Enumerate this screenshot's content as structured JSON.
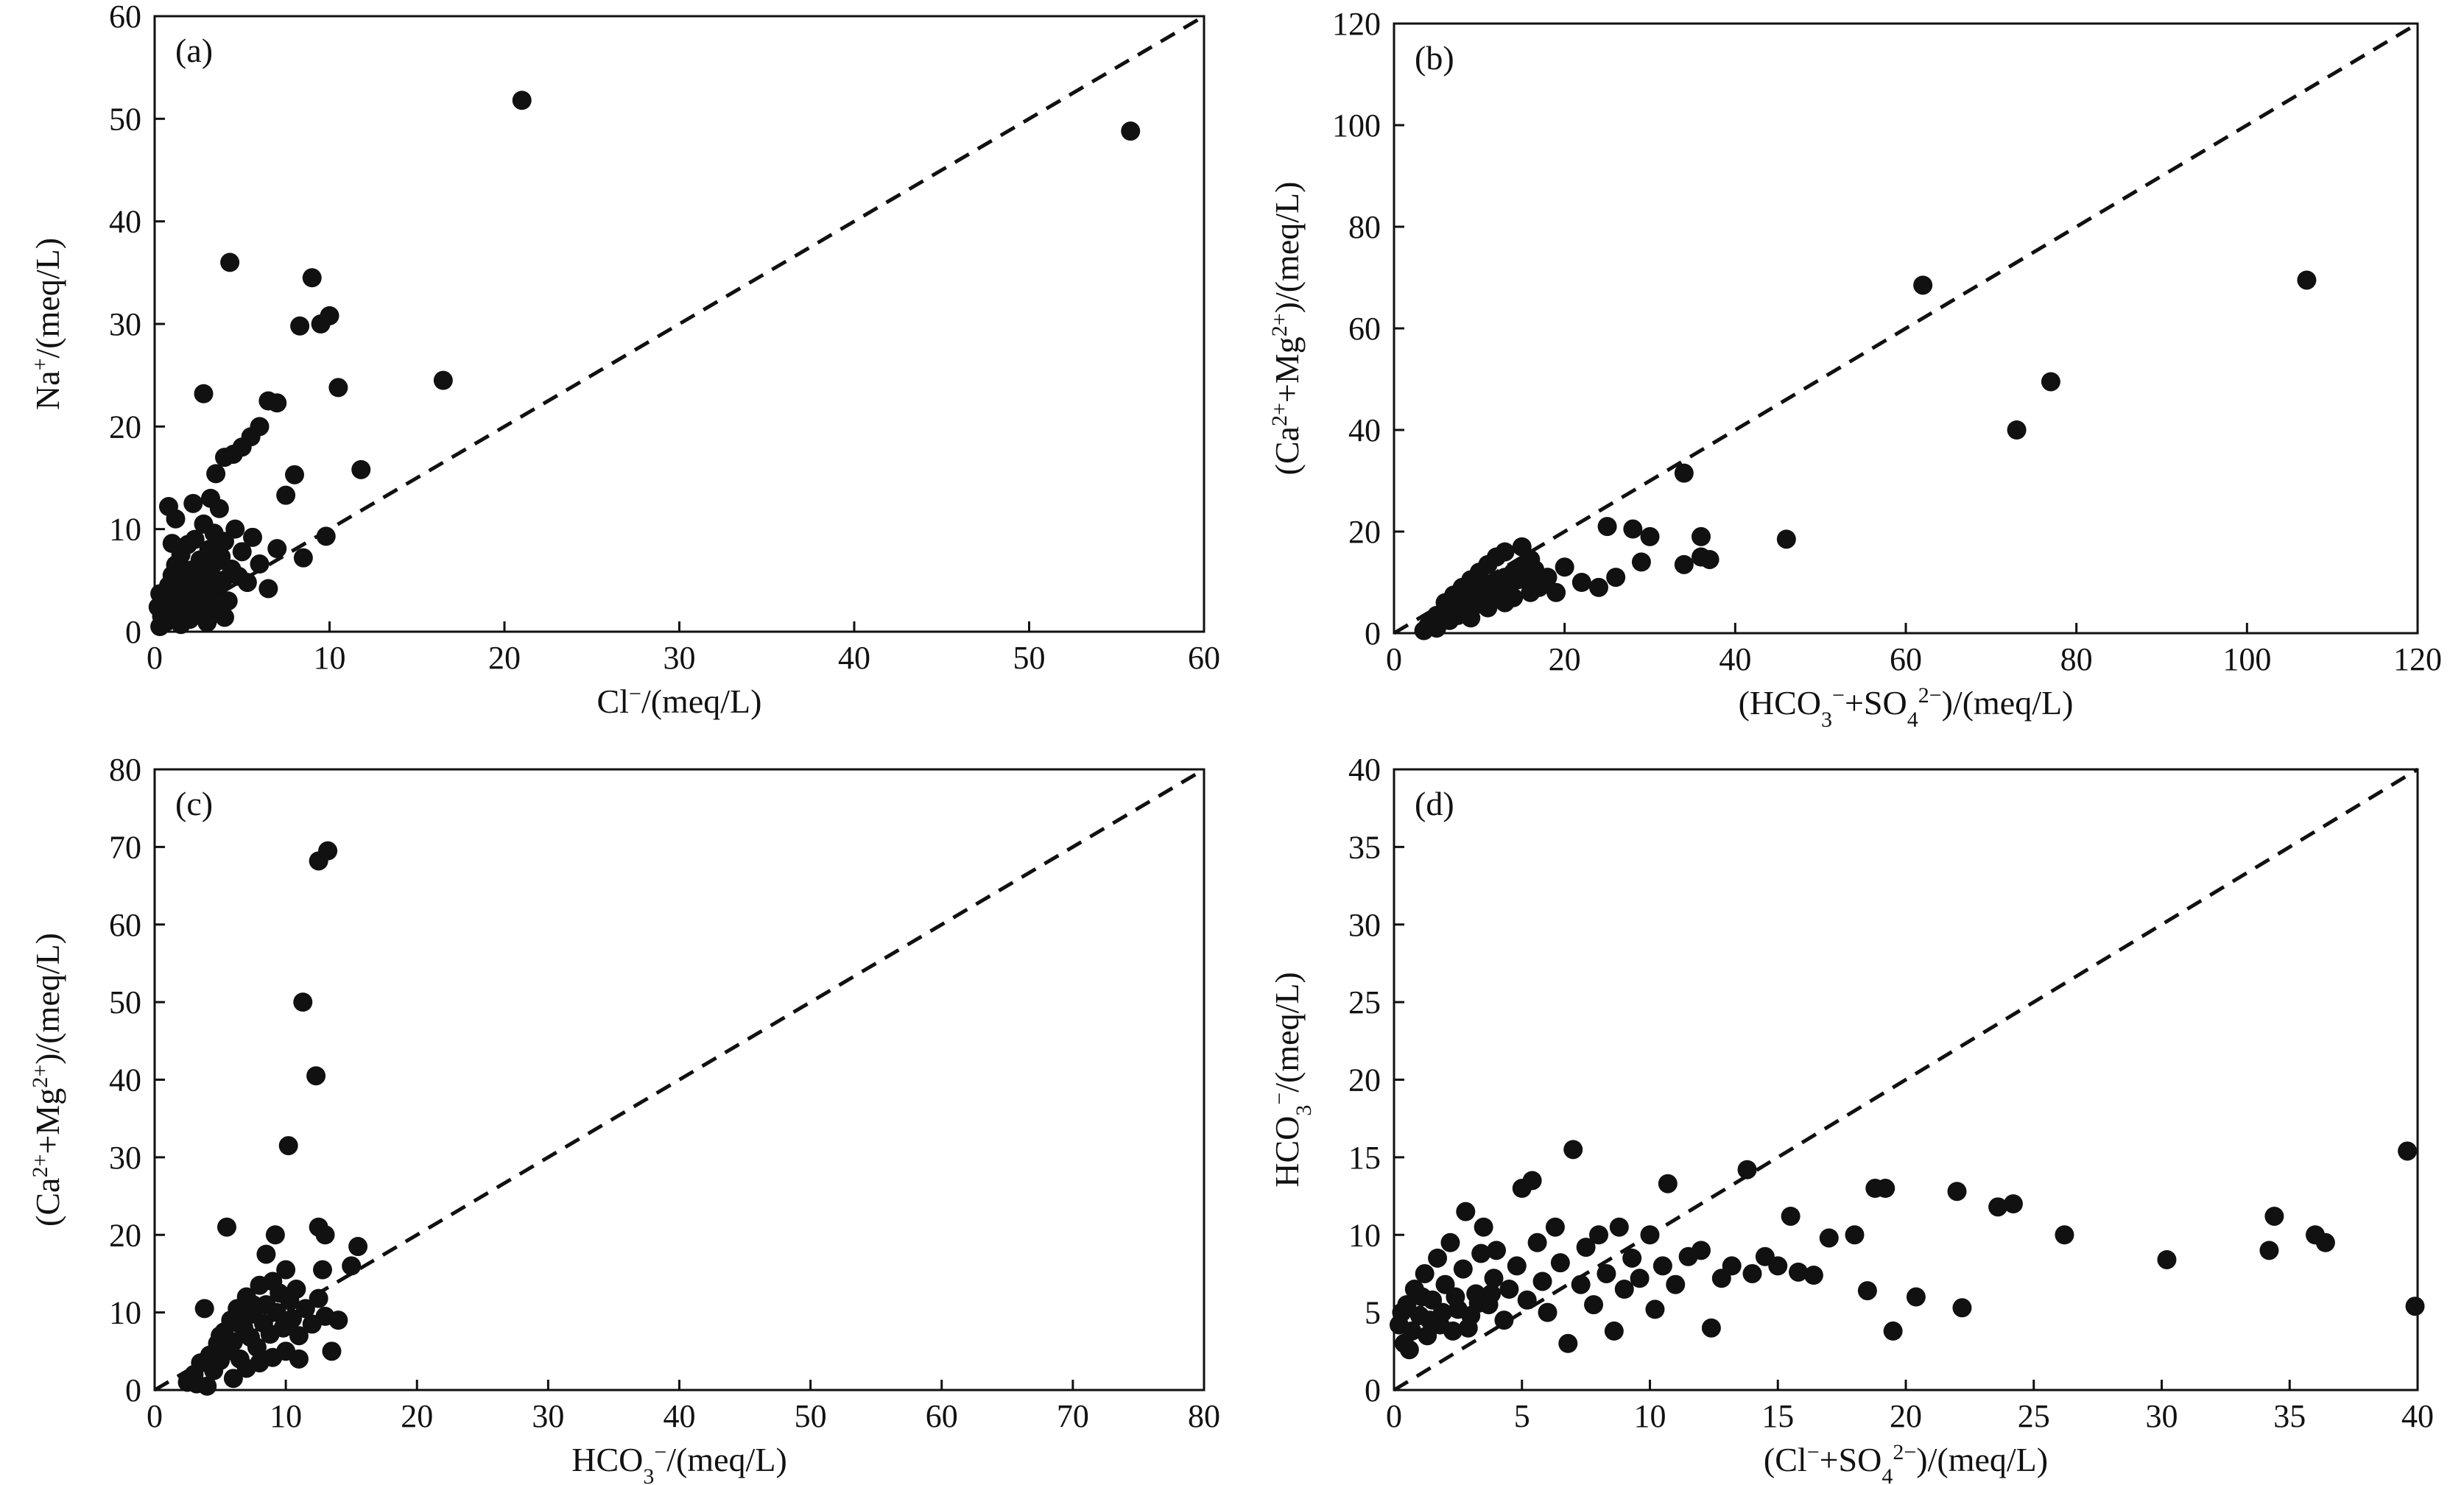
{
  "chart_data": [
    {
      "type": "scatter",
      "panel_label": "(a)",
      "xlabel": "Cl⁻/(meq/L)",
      "ylabel": "Na⁺/(meq/L)",
      "xlim": [
        0,
        60
      ],
      "ylim": [
        0,
        60
      ],
      "xticks": [
        0,
        10,
        20,
        30,
        40,
        50,
        60
      ],
      "yticks": [
        0,
        10,
        20,
        30,
        40,
        50,
        60
      ],
      "reference_line": "1:1 dashed",
      "points": [
        [
          0.3,
          0.5
        ],
        [
          0.4,
          1.5
        ],
        [
          0.5,
          2.8
        ],
        [
          0.6,
          3.5
        ],
        [
          0.7,
          1.0
        ],
        [
          0.8,
          4.5
        ],
        [
          0.9,
          2.2
        ],
        [
          1.0,
          5.5
        ],
        [
          1.1,
          3.0
        ],
        [
          1.2,
          6.5
        ],
        [
          1.3,
          1.8
        ],
        [
          1.4,
          4.0
        ],
        [
          1.5,
          7.5
        ],
        [
          1.6,
          2.5
        ],
        [
          1.7,
          5.0
        ],
        [
          1.8,
          3.5
        ],
        [
          1.9,
          8.5
        ],
        [
          2.0,
          4.2
        ],
        [
          2.1,
          6.0
        ],
        [
          2.2,
          2.0
        ],
        [
          2.3,
          9.0
        ],
        [
          2.4,
          5.2
        ],
        [
          2.5,
          3.2
        ],
        [
          2.6,
          7.0
        ],
        [
          2.7,
          4.6
        ],
        [
          2.8,
          10.5
        ],
        [
          2.9,
          6.3
        ],
        [
          3.0,
          2.8
        ],
        [
          3.1,
          8.0
        ],
        [
          3.2,
          5.7
        ],
        [
          3.3,
          3.9
        ],
        [
          3.4,
          9.6
        ],
        [
          3.5,
          6.8
        ],
        [
          3.6,
          4.4
        ],
        [
          3.7,
          12.0
        ],
        [
          3.8,
          7.3
        ],
        [
          3.9,
          5.0
        ],
        [
          4.0,
          8.8
        ],
        [
          4.2,
          3.0
        ],
        [
          4.4,
          6.1
        ],
        [
          4.6,
          10.0
        ],
        [
          4.8,
          5.4
        ],
        [
          5.0,
          7.8
        ],
        [
          5.3,
          4.8
        ],
        [
          5.6,
          9.2
        ],
        [
          6.0,
          6.6
        ],
        [
          6.5,
          4.2
        ],
        [
          7.0,
          8.1
        ],
        [
          0.8,
          12.2
        ],
        [
          2.8,
          23.2
        ],
        [
          4.3,
          36.0
        ],
        [
          3.5,
          15.4
        ],
        [
          4.0,
          17.0
        ],
        [
          4.5,
          17.3
        ],
        [
          5.0,
          18.0
        ],
        [
          5.5,
          19.0
        ],
        [
          6.0,
          20.0
        ],
        [
          6.5,
          22.5
        ],
        [
          7.0,
          22.3
        ],
        [
          7.5,
          13.3
        ],
        [
          8.0,
          15.3
        ],
        [
          8.3,
          29.8
        ],
        [
          9.0,
          34.5
        ],
        [
          9.5,
          30.0
        ],
        [
          10.0,
          30.8
        ],
        [
          10.5,
          23.8
        ],
        [
          11.8,
          15.8
        ],
        [
          16.5,
          24.5
        ],
        [
          21.0,
          51.8
        ],
        [
          55.8,
          48.8
        ],
        [
          8.5,
          7.2
        ],
        [
          9.8,
          9.3
        ],
        [
          1.5,
          0.7
        ],
        [
          2.0,
          1.2
        ],
        [
          2.5,
          1.9
        ],
        [
          3.0,
          0.9
        ],
        [
          3.5,
          2.3
        ],
        [
          4.0,
          1.4
        ],
        [
          1.0,
          8.6
        ],
        [
          1.2,
          11.0
        ],
        [
          2.2,
          12.5
        ],
        [
          3.2,
          13.0
        ],
        [
          0.2,
          2.4
        ],
        [
          0.3,
          3.7
        ]
      ]
    },
    {
      "type": "scatter",
      "panel_label": "(b)",
      "xlabel": "(HCO₃⁻+SO₄²⁻)/(meq/L)",
      "ylabel": "(Ca²⁺+Mg²⁺)/(meq/L)",
      "xlim": [
        0,
        120
      ],
      "ylim": [
        0,
        120
      ],
      "xticks": [
        0,
        20,
        40,
        60,
        80,
        100,
        120
      ],
      "yticks": [
        0,
        20,
        40,
        60,
        80,
        100,
        120
      ],
      "reference_line": "1:1 dashed",
      "points": [
        [
          3.5,
          0.5
        ],
        [
          4.0,
          1.5
        ],
        [
          4.5,
          2.0
        ],
        [
          5.0,
          1.0
        ],
        [
          5.5,
          3.0
        ],
        [
          6.0,
          4.0
        ],
        [
          6.5,
          2.5
        ],
        [
          7.0,
          5.0
        ],
        [
          7.5,
          3.5
        ],
        [
          8.0,
          6.5
        ],
        [
          8.5,
          4.5
        ],
        [
          9.0,
          7.0
        ],
        [
          9.5,
          5.5
        ],
        [
          10.0,
          8.0
        ],
        [
          10.5,
          6.0
        ],
        [
          11.0,
          9.0
        ],
        [
          11.5,
          7.5
        ],
        [
          12.0,
          10.0
        ],
        [
          12.5,
          8.5
        ],
        [
          13.0,
          11.0
        ],
        [
          13.5,
          9.5
        ],
        [
          14.0,
          12.0
        ],
        [
          14.5,
          10.5
        ],
        [
          15.0,
          13.0
        ],
        [
          15.5,
          11.5
        ],
        [
          16.0,
          14.5
        ],
        [
          16.5,
          12.5
        ],
        [
          17.0,
          9.0
        ],
        [
          18.0,
          11.0
        ],
        [
          19.0,
          8.0
        ],
        [
          20.0,
          13.0
        ],
        [
          22.0,
          10.0
        ],
        [
          24.0,
          9.0
        ],
        [
          25.0,
          21.0
        ],
        [
          26.0,
          11.0
        ],
        [
          28.0,
          20.5
        ],
        [
          29.0,
          14.0
        ],
        [
          30.0,
          19.0
        ],
        [
          34.0,
          31.5
        ],
        [
          34.0,
          13.5
        ],
        [
          36.0,
          19.0
        ],
        [
          36.0,
          15.0
        ],
        [
          37.0,
          14.5
        ],
        [
          46.0,
          18.5
        ],
        [
          62.0,
          68.5
        ],
        [
          73.0,
          40.0
        ],
        [
          77.0,
          49.5
        ],
        [
          107.0,
          69.5
        ],
        [
          6.0,
          6.0
        ],
        [
          7.0,
          7.5
        ],
        [
          8.0,
          9.0
        ],
        [
          9.0,
          10.5
        ],
        [
          10.0,
          12.0
        ],
        [
          11.0,
          13.5
        ],
        [
          12.0,
          15.0
        ],
        [
          13.0,
          16.0
        ],
        [
          15.0,
          17.0
        ],
        [
          5.0,
          3.5
        ],
        [
          9.0,
          3.0
        ],
        [
          11.0,
          5.0
        ],
        [
          13.0,
          6.0
        ],
        [
          14.0,
          7.0
        ],
        [
          16.0,
          8.0
        ]
      ]
    },
    {
      "type": "scatter",
      "panel_label": "(c)",
      "xlabel": "HCO₃⁻/(meq/L)",
      "ylabel": "(Ca²⁺+Mg²⁺)/(meq/L)",
      "xlim": [
        0,
        80
      ],
      "ylim": [
        0,
        80
      ],
      "xticks": [
        0,
        10,
        20,
        30,
        40,
        50,
        60,
        70,
        80
      ],
      "yticks": [
        0,
        10,
        20,
        30,
        40,
        50,
        60,
        70,
        80
      ],
      "reference_line": "1:1 dashed",
      "points": [
        [
          2.5,
          1.0
        ],
        [
          3.0,
          2.0
        ],
        [
          3.5,
          3.5
        ],
        [
          4.0,
          0.5
        ],
        [
          4.2,
          4.5
        ],
        [
          4.5,
          2.5
        ],
        [
          4.8,
          6.0
        ],
        [
          5.0,
          3.8
        ],
        [
          5.3,
          7.5
        ],
        [
          5.5,
          5.0
        ],
        [
          5.8,
          9.0
        ],
        [
          6.0,
          6.2
        ],
        [
          6.3,
          10.5
        ],
        [
          6.5,
          4.0
        ],
        [
          6.8,
          8.0
        ],
        [
          7.0,
          12.0
        ],
        [
          7.3,
          6.8
        ],
        [
          7.5,
          9.8
        ],
        [
          7.8,
          5.5
        ],
        [
          8.0,
          13.5
        ],
        [
          8.3,
          8.6
        ],
        [
          8.5,
          11.0
        ],
        [
          8.8,
          7.2
        ],
        [
          9.0,
          14.0
        ],
        [
          9.3,
          10.0
        ],
        [
          9.5,
          12.5
        ],
        [
          9.8,
          8.0
        ],
        [
          10.0,
          15.5
        ],
        [
          10.3,
          11.5
        ],
        [
          10.5,
          9.2
        ],
        [
          10.8,
          13.0
        ],
        [
          11.0,
          7.0
        ],
        [
          11.5,
          10.5
        ],
        [
          12.0,
          8.5
        ],
        [
          12.5,
          11.8
        ],
        [
          13.0,
          9.5
        ],
        [
          13.5,
          5.0
        ],
        [
          14.0,
          9.0
        ],
        [
          15.0,
          16.0
        ],
        [
          15.5,
          18.5
        ],
        [
          12.8,
          15.5
        ],
        [
          5.5,
          21.0
        ],
        [
          3.8,
          10.5
        ],
        [
          8.5,
          17.5
        ],
        [
          9.2,
          20.0
        ],
        [
          10.2,
          31.5
        ],
        [
          11.3,
          50.0
        ],
        [
          12.3,
          40.5
        ],
        [
          12.5,
          68.2
        ],
        [
          13.2,
          69.5
        ],
        [
          12.5,
          21.0
        ],
        [
          13.0,
          20.0
        ],
        [
          6.0,
          1.5
        ],
        [
          7.0,
          2.8
        ],
        [
          8.0,
          3.5
        ],
        [
          9.0,
          4.2
        ],
        [
          10.0,
          5.0
        ],
        [
          11.0,
          4.0
        ],
        [
          3.2,
          0.8
        ],
        [
          5.0,
          7.0
        ],
        [
          6.5,
          8.5
        ],
        [
          7.5,
          11.0
        ]
      ]
    },
    {
      "type": "scatter",
      "panel_label": "(d)",
      "xlabel": "(Cl⁻+SO₄²⁻)/(meq/L)",
      "ylabel": "HCO₃⁻/(meq/L)",
      "xlim": [
        0,
        40
      ],
      "ylim": [
        0,
        40
      ],
      "xticks": [
        0,
        5,
        10,
        15,
        20,
        25,
        30,
        35,
        40
      ],
      "yticks": [
        0,
        5,
        10,
        15,
        20,
        25,
        30,
        35,
        40
      ],
      "reference_line": "1:1 dashed",
      "points": [
        [
          0.2,
          4.2
        ],
        [
          0.4,
          3.0
        ],
        [
          0.5,
          5.5
        ],
        [
          0.6,
          2.6
        ],
        [
          0.8,
          6.5
        ],
        [
          1.0,
          4.8
        ],
        [
          1.2,
          7.5
        ],
        [
          1.3,
          3.5
        ],
        [
          1.5,
          5.8
        ],
        [
          1.7,
          8.5
        ],
        [
          1.8,
          4.2
        ],
        [
          2.0,
          6.8
        ],
        [
          2.2,
          9.5
        ],
        [
          2.3,
          3.8
        ],
        [
          2.5,
          5.2
        ],
        [
          2.7,
          7.8
        ],
        [
          2.8,
          11.5
        ],
        [
          3.0,
          4.8
        ],
        [
          3.2,
          6.2
        ],
        [
          3.4,
          8.8
        ],
        [
          3.5,
          10.5
        ],
        [
          3.7,
          5.5
        ],
        [
          3.9,
          7.2
        ],
        [
          4.0,
          9.0
        ],
        [
          4.3,
          4.5
        ],
        [
          4.5,
          6.5
        ],
        [
          4.8,
          8.0
        ],
        [
          5.0,
          13.0
        ],
        [
          5.2,
          5.8
        ],
        [
          5.4,
          13.5
        ],
        [
          5.6,
          9.5
        ],
        [
          5.8,
          7.0
        ],
        [
          6.0,
          5.0
        ],
        [
          6.3,
          10.5
        ],
        [
          6.5,
          8.2
        ],
        [
          6.8,
          3.0
        ],
        [
          7.0,
          15.5
        ],
        [
          7.3,
          6.8
        ],
        [
          7.5,
          9.2
        ],
        [
          7.8,
          5.5
        ],
        [
          8.0,
          10.0
        ],
        [
          8.3,
          7.5
        ],
        [
          8.6,
          3.8
        ],
        [
          8.8,
          10.5
        ],
        [
          9.0,
          6.5
        ],
        [
          9.3,
          8.5
        ],
        [
          9.6,
          7.2
        ],
        [
          10.0,
          10.0
        ],
        [
          10.2,
          5.2
        ],
        [
          10.5,
          8.0
        ],
        [
          10.7,
          13.3
        ],
        [
          11.0,
          6.8
        ],
        [
          11.5,
          8.6
        ],
        [
          12.0,
          9.0
        ],
        [
          12.4,
          4.0
        ],
        [
          12.8,
          7.2
        ],
        [
          13.2,
          8.0
        ],
        [
          13.8,
          14.2
        ],
        [
          14.0,
          7.5
        ],
        [
          14.5,
          8.6
        ],
        [
          15.0,
          8.0
        ],
        [
          15.5,
          11.2
        ],
        [
          15.8,
          7.6
        ],
        [
          16.4,
          7.4
        ],
        [
          17.0,
          9.8
        ],
        [
          18.0,
          10.0
        ],
        [
          18.5,
          6.4
        ],
        [
          18.8,
          13.0
        ],
        [
          19.2,
          13.0
        ],
        [
          19.5,
          3.8
        ],
        [
          20.4,
          6.0
        ],
        [
          22.0,
          12.8
        ],
        [
          22.2,
          5.3
        ],
        [
          23.6,
          11.8
        ],
        [
          24.2,
          12.0
        ],
        [
          26.2,
          10.0
        ],
        [
          30.2,
          8.4
        ],
        [
          34.2,
          9.0
        ],
        [
          34.4,
          11.2
        ],
        [
          36.0,
          10.0
        ],
        [
          36.4,
          9.5
        ],
        [
          39.6,
          15.4
        ],
        [
          39.9,
          5.4
        ],
        [
          0.3,
          5.0
        ],
        [
          0.7,
          3.8
        ],
        [
          1.1,
          6.0
        ],
        [
          1.4,
          4.5
        ],
        [
          1.9,
          5.0
        ],
        [
          2.4,
          6.0
        ],
        [
          2.9,
          4.0
        ],
        [
          3.3,
          5.6
        ],
        [
          3.8,
          6.2
        ]
      ]
    }
  ]
}
